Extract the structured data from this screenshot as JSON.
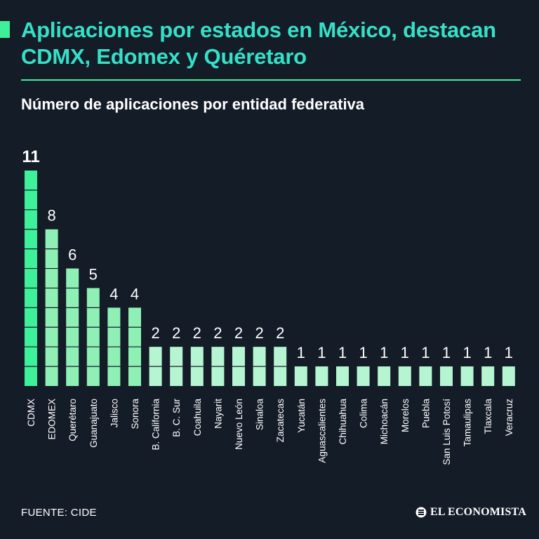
{
  "header": {
    "title": "Aplicaciones por estados en México, destacan CDMX, Edomex y Quéretaro",
    "subtitle": "Número de aplicaciones por entidad federativa"
  },
  "footer": {
    "source": "FUENTE: CIDE",
    "brand": "EL ECONOMISTA"
  },
  "colors": {
    "background": "#141c28",
    "accent": "#35e0c8",
    "bar_top": "#3ef09a",
    "bar_high": "#8ff0b6",
    "bar_mid": "#b6f5d2",
    "text": "#ffffff"
  },
  "chart_data": {
    "type": "bar",
    "title": "Número de aplicaciones por entidad federativa",
    "xlabel": "",
    "ylabel": "",
    "grid": false,
    "legend": "none",
    "categories": [
      "CDMX",
      "EDOMEX",
      "Querétaro",
      "Guanajuato",
      "Jalisco",
      "Sonora",
      "B. California",
      "B. C. Sur",
      "Coahuila",
      "Nayarit",
      "Nuevo León",
      "Sinaloa",
      "Zacatecas",
      "Yucatán",
      "Aguascalientes",
      "Chihuahua",
      "Colima",
      "Michoacán",
      "Morelos",
      "Puebla",
      "San Luis Potosí",
      "Tamaulipas",
      "Tlaxcala",
      "Veracruz"
    ],
    "values": [
      11,
      8,
      6,
      5,
      4,
      4,
      2,
      2,
      2,
      2,
      2,
      2,
      2,
      1,
      1,
      1,
      1,
      1,
      1,
      1,
      1,
      1,
      1,
      1
    ],
    "ylim": [
      0,
      11
    ]
  }
}
